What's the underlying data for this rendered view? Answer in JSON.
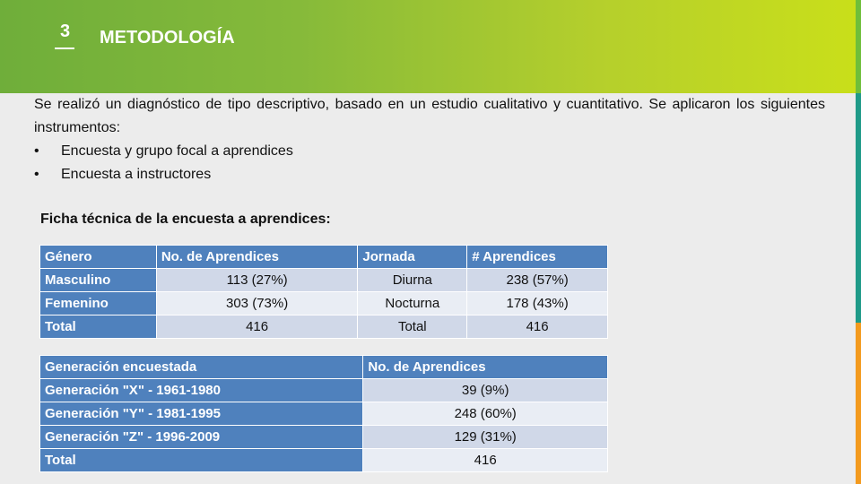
{
  "header": {
    "section_number": "3",
    "title": "METODOLOGÍA"
  },
  "intro": {
    "paragraph": "Se realizó un diagnóstico de tipo descriptivo, basado en un estudio cualitativo y cuantitativo.  Se aplicaron los siguientes instrumentos:",
    "bullets": [
      "Encuesta y  grupo focal a aprendices",
      "Encuesta a instructores"
    ]
  },
  "fiche_title": "Ficha técnica de la encuesta a aprendices:",
  "table1": {
    "headers": [
      "Género",
      "No. de Aprendices",
      "Jornada",
      "# Aprendices"
    ],
    "rows": [
      [
        "Masculino",
        "113 (27%)",
        "Diurna",
        "238 (57%)"
      ],
      [
        "Femenino",
        "303 (73%)",
        "Nocturna",
        "178 (43%)"
      ],
      [
        "Total",
        "416",
        "Total",
        "416"
      ]
    ]
  },
  "table2": {
    "headers": [
      "Generación encuestada",
      "No. de Aprendices"
    ],
    "rows": [
      [
        "Generación \"X\" - 1961-1980",
        "39 (9%)"
      ],
      [
        "Generación \"Y\" - 1981-1995",
        "248 (60%)"
      ],
      [
        "Generación \"Z\" - 1996-2009",
        "129 (31%)"
      ],
      [
        "Total",
        "416"
      ]
    ]
  },
  "colors": {
    "header_start": "#6fae3a",
    "header_end": "#c9df1a",
    "table_header": "#4f81bd",
    "table_row_dark": "#d0d8e8",
    "table_row_light": "#e9edf4"
  }
}
